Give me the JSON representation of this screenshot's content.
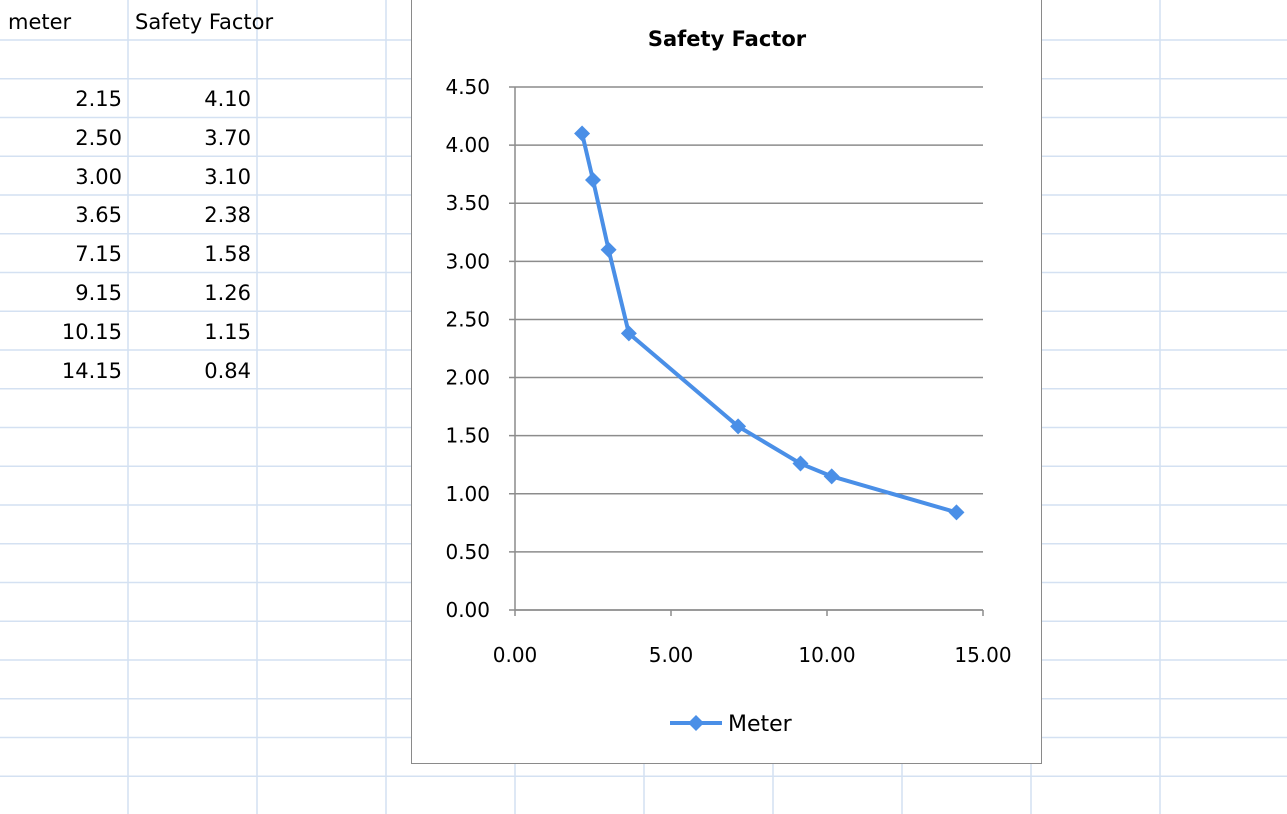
{
  "sheet": {
    "headers": [
      "meter",
      "Safety Factor"
    ],
    "rows": [
      [
        "2.15",
        "4.10"
      ],
      [
        "2.50",
        "3.70"
      ],
      [
        "3.00",
        "3.10"
      ],
      [
        "3.65",
        "2.38"
      ],
      [
        "7.15",
        "1.58"
      ],
      [
        "9.15",
        "1.26"
      ],
      [
        "10.15",
        "1.15"
      ],
      [
        "14.15",
        "0.84"
      ]
    ]
  },
  "colors": {
    "gridline": "#d4e1f2",
    "series": "#4a8fe7",
    "plot_grid": "#8c8c8c",
    "axis": "#8c8c8c"
  },
  "chart_data": {
    "type": "line",
    "title": "Safety Factor",
    "xlabel": "",
    "ylabel": "",
    "xlim": [
      0,
      15
    ],
    "ylim": [
      0,
      4.5
    ],
    "x_ticks": [
      "0.00",
      "5.00",
      "10.00",
      "15.00"
    ],
    "y_ticks": [
      "0.00",
      "0.50",
      "1.00",
      "1.50",
      "2.00",
      "2.50",
      "3.00",
      "3.50",
      "4.00",
      "4.50"
    ],
    "grid": "horizontal",
    "legend_position": "bottom",
    "marker": "diamond",
    "series": [
      {
        "name": "Meter",
        "x": [
          2.15,
          2.5,
          3.0,
          3.65,
          7.15,
          9.15,
          10.15,
          14.15
        ],
        "y": [
          4.1,
          3.7,
          3.1,
          2.38,
          1.58,
          1.26,
          1.15,
          0.84
        ]
      }
    ]
  }
}
